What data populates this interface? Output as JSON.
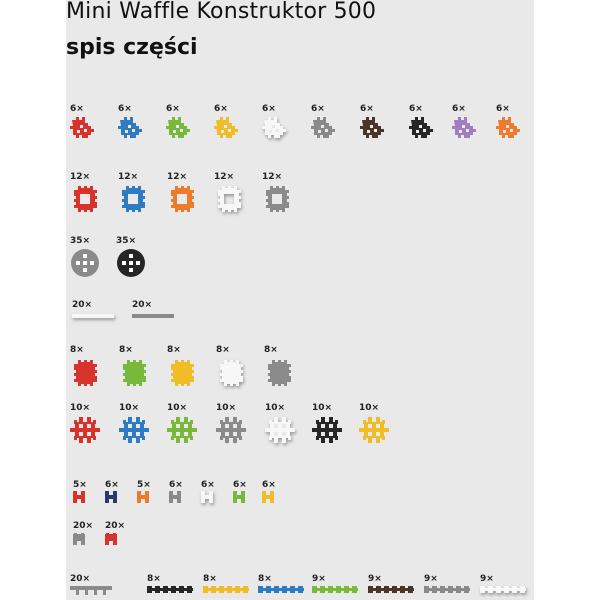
{
  "header": {
    "title": "Mini Waffle Konstruktor 500",
    "subtitle": "spis części"
  },
  "colors": {
    "red": "#d8322d",
    "blue": "#2f7bc0",
    "green": "#78b83a",
    "yellow": "#f0bd28",
    "white": "#f7f7f7",
    "gray": "#8a8a8a",
    "brown": "#4a3528",
    "black": "#262626",
    "purple": "#a07ec0",
    "orange": "#ee7a2c",
    "navy": "#2a3a6e",
    "background": "#e9e9e9"
  },
  "groups": [
    {
      "name": "corner-pieces",
      "items": [
        {
          "qty": "6×",
          "color": "red"
        },
        {
          "qty": "6×",
          "color": "blue"
        },
        {
          "qty": "6×",
          "color": "green"
        },
        {
          "qty": "6×",
          "color": "yellow"
        },
        {
          "qty": "6×",
          "color": "white"
        },
        {
          "qty": "6×",
          "color": "gray"
        },
        {
          "qty": "6×",
          "color": "brown"
        },
        {
          "qty": "6×",
          "color": "black"
        },
        {
          "qty": "6×",
          "color": "purple"
        },
        {
          "qty": "6×",
          "color": "orange"
        }
      ]
    },
    {
      "name": "frame-pieces",
      "items": [
        {
          "qty": "12×",
          "color": "red"
        },
        {
          "qty": "12×",
          "color": "blue"
        },
        {
          "qty": "12×",
          "color": "orange"
        },
        {
          "qty": "12×",
          "color": "white"
        },
        {
          "qty": "12×",
          "color": "gray"
        }
      ]
    },
    {
      "name": "round-pieces",
      "items": [
        {
          "qty": "35×",
          "color": "gray"
        },
        {
          "qty": "35×",
          "color": "black"
        }
      ]
    },
    {
      "name": "rod-pieces",
      "items": [
        {
          "qty": "20×",
          "color": "white"
        },
        {
          "qty": "20×",
          "color": "gray"
        }
      ]
    },
    {
      "name": "solid-square-pieces",
      "items": [
        {
          "qty": "8×",
          "color": "red"
        },
        {
          "qty": "8×",
          "color": "green"
        },
        {
          "qty": "8×",
          "color": "yellow"
        },
        {
          "qty": "8×",
          "color": "white"
        },
        {
          "qty": "8×",
          "color": "gray"
        }
      ]
    },
    {
      "name": "waffle-pieces",
      "items": [
        {
          "qty": "10×",
          "color": "red"
        },
        {
          "qty": "10×",
          "color": "blue"
        },
        {
          "qty": "10×",
          "color": "green"
        },
        {
          "qty": "10×",
          "color": "gray"
        },
        {
          "qty": "10×",
          "color": "white"
        },
        {
          "qty": "10×",
          "color": "black"
        },
        {
          "qty": "10×",
          "color": "yellow"
        }
      ]
    },
    {
      "name": "h-connectors",
      "items": [
        {
          "qty": "5×",
          "color": "red"
        },
        {
          "qty": "6×",
          "color": "navy"
        },
        {
          "qty": "5×",
          "color": "orange"
        },
        {
          "qty": "6×",
          "color": "gray"
        },
        {
          "qty": "6×",
          "color": "white"
        },
        {
          "qty": "6×",
          "color": "green"
        },
        {
          "qty": "6×",
          "color": "yellow"
        }
      ]
    },
    {
      "name": "arch-connectors",
      "items": [
        {
          "qty": "20×",
          "color": "gray"
        },
        {
          "qty": "20×",
          "color": "red"
        }
      ]
    },
    {
      "name": "long-pieces",
      "items": [
        {
          "qty": "20×",
          "color": "gray",
          "kind": "comb"
        },
        {
          "qty": "8×",
          "color": "black",
          "kind": "chain"
        },
        {
          "qty": "8×",
          "color": "yellow",
          "kind": "chain"
        },
        {
          "qty": "8×",
          "color": "blue",
          "kind": "chain"
        },
        {
          "qty": "9×",
          "color": "green",
          "kind": "chain"
        },
        {
          "qty": "9×",
          "color": "brown",
          "kind": "chain"
        },
        {
          "qty": "9×",
          "color": "gray",
          "kind": "chain"
        },
        {
          "qty": "9×",
          "color": "white",
          "kind": "chain"
        }
      ]
    }
  ]
}
